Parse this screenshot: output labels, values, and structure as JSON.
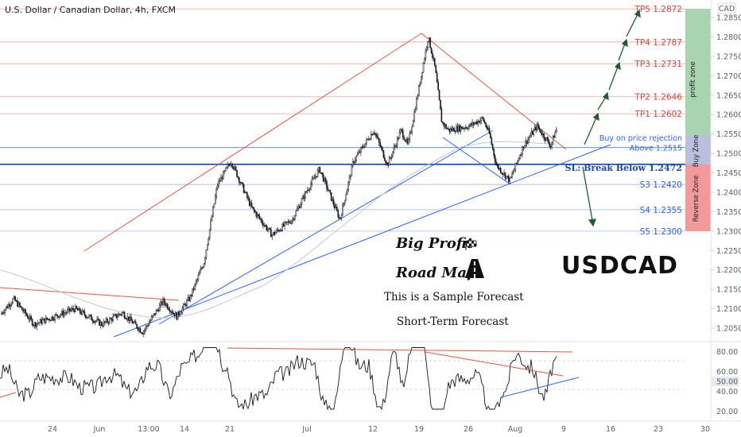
{
  "header": {
    "title": "U.S. Dollar / Canadian Dollar, 4h, FXCM",
    "currency": "CAD"
  },
  "annotations": {
    "big_profit": "Big Profit",
    "road_map": "Road Map",
    "sample": "This is a Sample Forecast",
    "short_term": "Short-Term Forecast",
    "symbol": "USDCAD",
    "flag_icon": "checkered-flag-icon",
    "road_icon": "road-icon"
  },
  "zones": {
    "profit": "profit zone",
    "buy": "Buy Zone",
    "reverse": "Reverse Zone",
    "colors": {
      "profit": "#a8d5b0",
      "buy": "#b9bfdc",
      "reverse": "#f29a9a"
    }
  },
  "chart_data": {
    "type": "candlestick",
    "title": "U.S. Dollar / Canadian Dollar, 4h, FXCM",
    "xlabel": "",
    "ylabel": "",
    "ylim": [
      1.2,
      1.289
    ],
    "y_ticks": [
      "1.28500",
      "1.28000",
      "1.27500",
      "1.27000",
      "1.26500",
      "1.26000",
      "1.25500",
      "1.25000",
      "1.24500",
      "1.24000",
      "1.23500",
      "1.23000",
      "1.22500",
      "1.22000",
      "1.21500",
      "1.21000",
      "1.20500"
    ],
    "x_ticks": [
      "24",
      "Jun",
      "13:00",
      "14",
      "21",
      "Jul",
      "12",
      "19",
      "26",
      "Aug",
      "9",
      "16",
      "23",
      "30"
    ],
    "levels": [
      {
        "label": "TP5 1.2872",
        "value": 1.2872,
        "kind": "tp"
      },
      {
        "label": "TP4 1.2787",
        "value": 1.2787,
        "kind": "tp"
      },
      {
        "label": "TP3 1.2731",
        "value": 1.2731,
        "kind": "tp"
      },
      {
        "label": "TP2 1.2646",
        "value": 1.2646,
        "kind": "tp"
      },
      {
        "label": "TP1 1.2602",
        "value": 1.2602,
        "kind": "tp"
      },
      {
        "label": "Buy on price rejection",
        "value": 1.2531,
        "kind": "buy"
      },
      {
        "label": "Above 1.2515",
        "value": 1.2515,
        "kind": "buy"
      },
      {
        "label": "SL: Break Below 1.2472",
        "value": 1.2472,
        "kind": "sl"
      },
      {
        "label": "S3 1.2420",
        "value": 1.242,
        "kind": "s"
      },
      {
        "label": "S4 1.2355",
        "value": 1.2355,
        "kind": "s"
      },
      {
        "label": "S5 1.2300",
        "value": 1.23,
        "kind": "s"
      }
    ],
    "price_path": [
      {
        "date": "2021-05-17",
        "price": 1.2085
      },
      {
        "date": "2021-05-19",
        "price": 1.2125
      },
      {
        "date": "2021-05-22",
        "price": 1.206
      },
      {
        "date": "2021-05-25",
        "price": 1.208
      },
      {
        "date": "2021-05-28",
        "price": 1.21
      },
      {
        "date": "2021-06-01",
        "price": 1.206
      },
      {
        "date": "2021-06-04",
        "price": 1.209
      },
      {
        "date": "2021-06-07",
        "price": 1.204
      },
      {
        "date": "2021-06-10",
        "price": 1.212
      },
      {
        "date": "2021-06-12",
        "price": 1.208
      },
      {
        "date": "2021-06-14",
        "price": 1.213
      },
      {
        "date": "2021-06-16",
        "price": 1.222
      },
      {
        "date": "2021-06-18",
        "price": 1.242
      },
      {
        "date": "2021-06-20",
        "price": 1.248
      },
      {
        "date": "2021-06-23",
        "price": 1.236
      },
      {
        "date": "2021-06-26",
        "price": 1.229
      },
      {
        "date": "2021-06-29",
        "price": 1.233
      },
      {
        "date": "2021-07-01",
        "price": 1.24
      },
      {
        "date": "2021-07-03",
        "price": 1.246
      },
      {
        "date": "2021-07-06",
        "price": 1.233
      },
      {
        "date": "2021-07-08",
        "price": 1.248
      },
      {
        "date": "2021-07-11",
        "price": 1.256
      },
      {
        "date": "2021-07-13",
        "price": 1.247
      },
      {
        "date": "2021-07-15",
        "price": 1.256
      },
      {
        "date": "2021-07-16",
        "price": 1.252
      },
      {
        "date": "2021-07-17",
        "price": 1.261
      },
      {
        "date": "2021-07-19",
        "price": 1.28
      },
      {
        "date": "2021-07-20",
        "price": 1.272
      },
      {
        "date": "2021-07-21",
        "price": 1.258
      },
      {
        "date": "2021-07-22",
        "price": 1.256
      },
      {
        "date": "2021-07-25",
        "price": 1.257
      },
      {
        "date": "2021-07-27",
        "price": 1.259
      },
      {
        "date": "2021-07-28",
        "price": 1.255
      },
      {
        "date": "2021-07-29",
        "price": 1.247
      },
      {
        "date": "2021-07-31",
        "price": 1.243
      },
      {
        "date": "2021-08-02",
        "price": 1.252
      },
      {
        "date": "2021-08-04",
        "price": 1.257
      },
      {
        "date": "2021-08-06",
        "price": 1.252
      },
      {
        "date": "2021-08-07",
        "price": 1.257
      }
    ],
    "forecast_targets": [
      "TP1 1.2602",
      "TP2 1.2646",
      "TP3 1.2731",
      "TP4 1.2787",
      "TP5 1.2872"
    ],
    "forecast_bearish_target": "S5 1.2300",
    "oscillator": {
      "ylim": [
        10,
        90
      ],
      "y_ticks": [
        "80.00",
        "60.00",
        "50.00",
        "40.00",
        "20.00"
      ],
      "current_label": "50.00"
    },
    "grid": false
  }
}
